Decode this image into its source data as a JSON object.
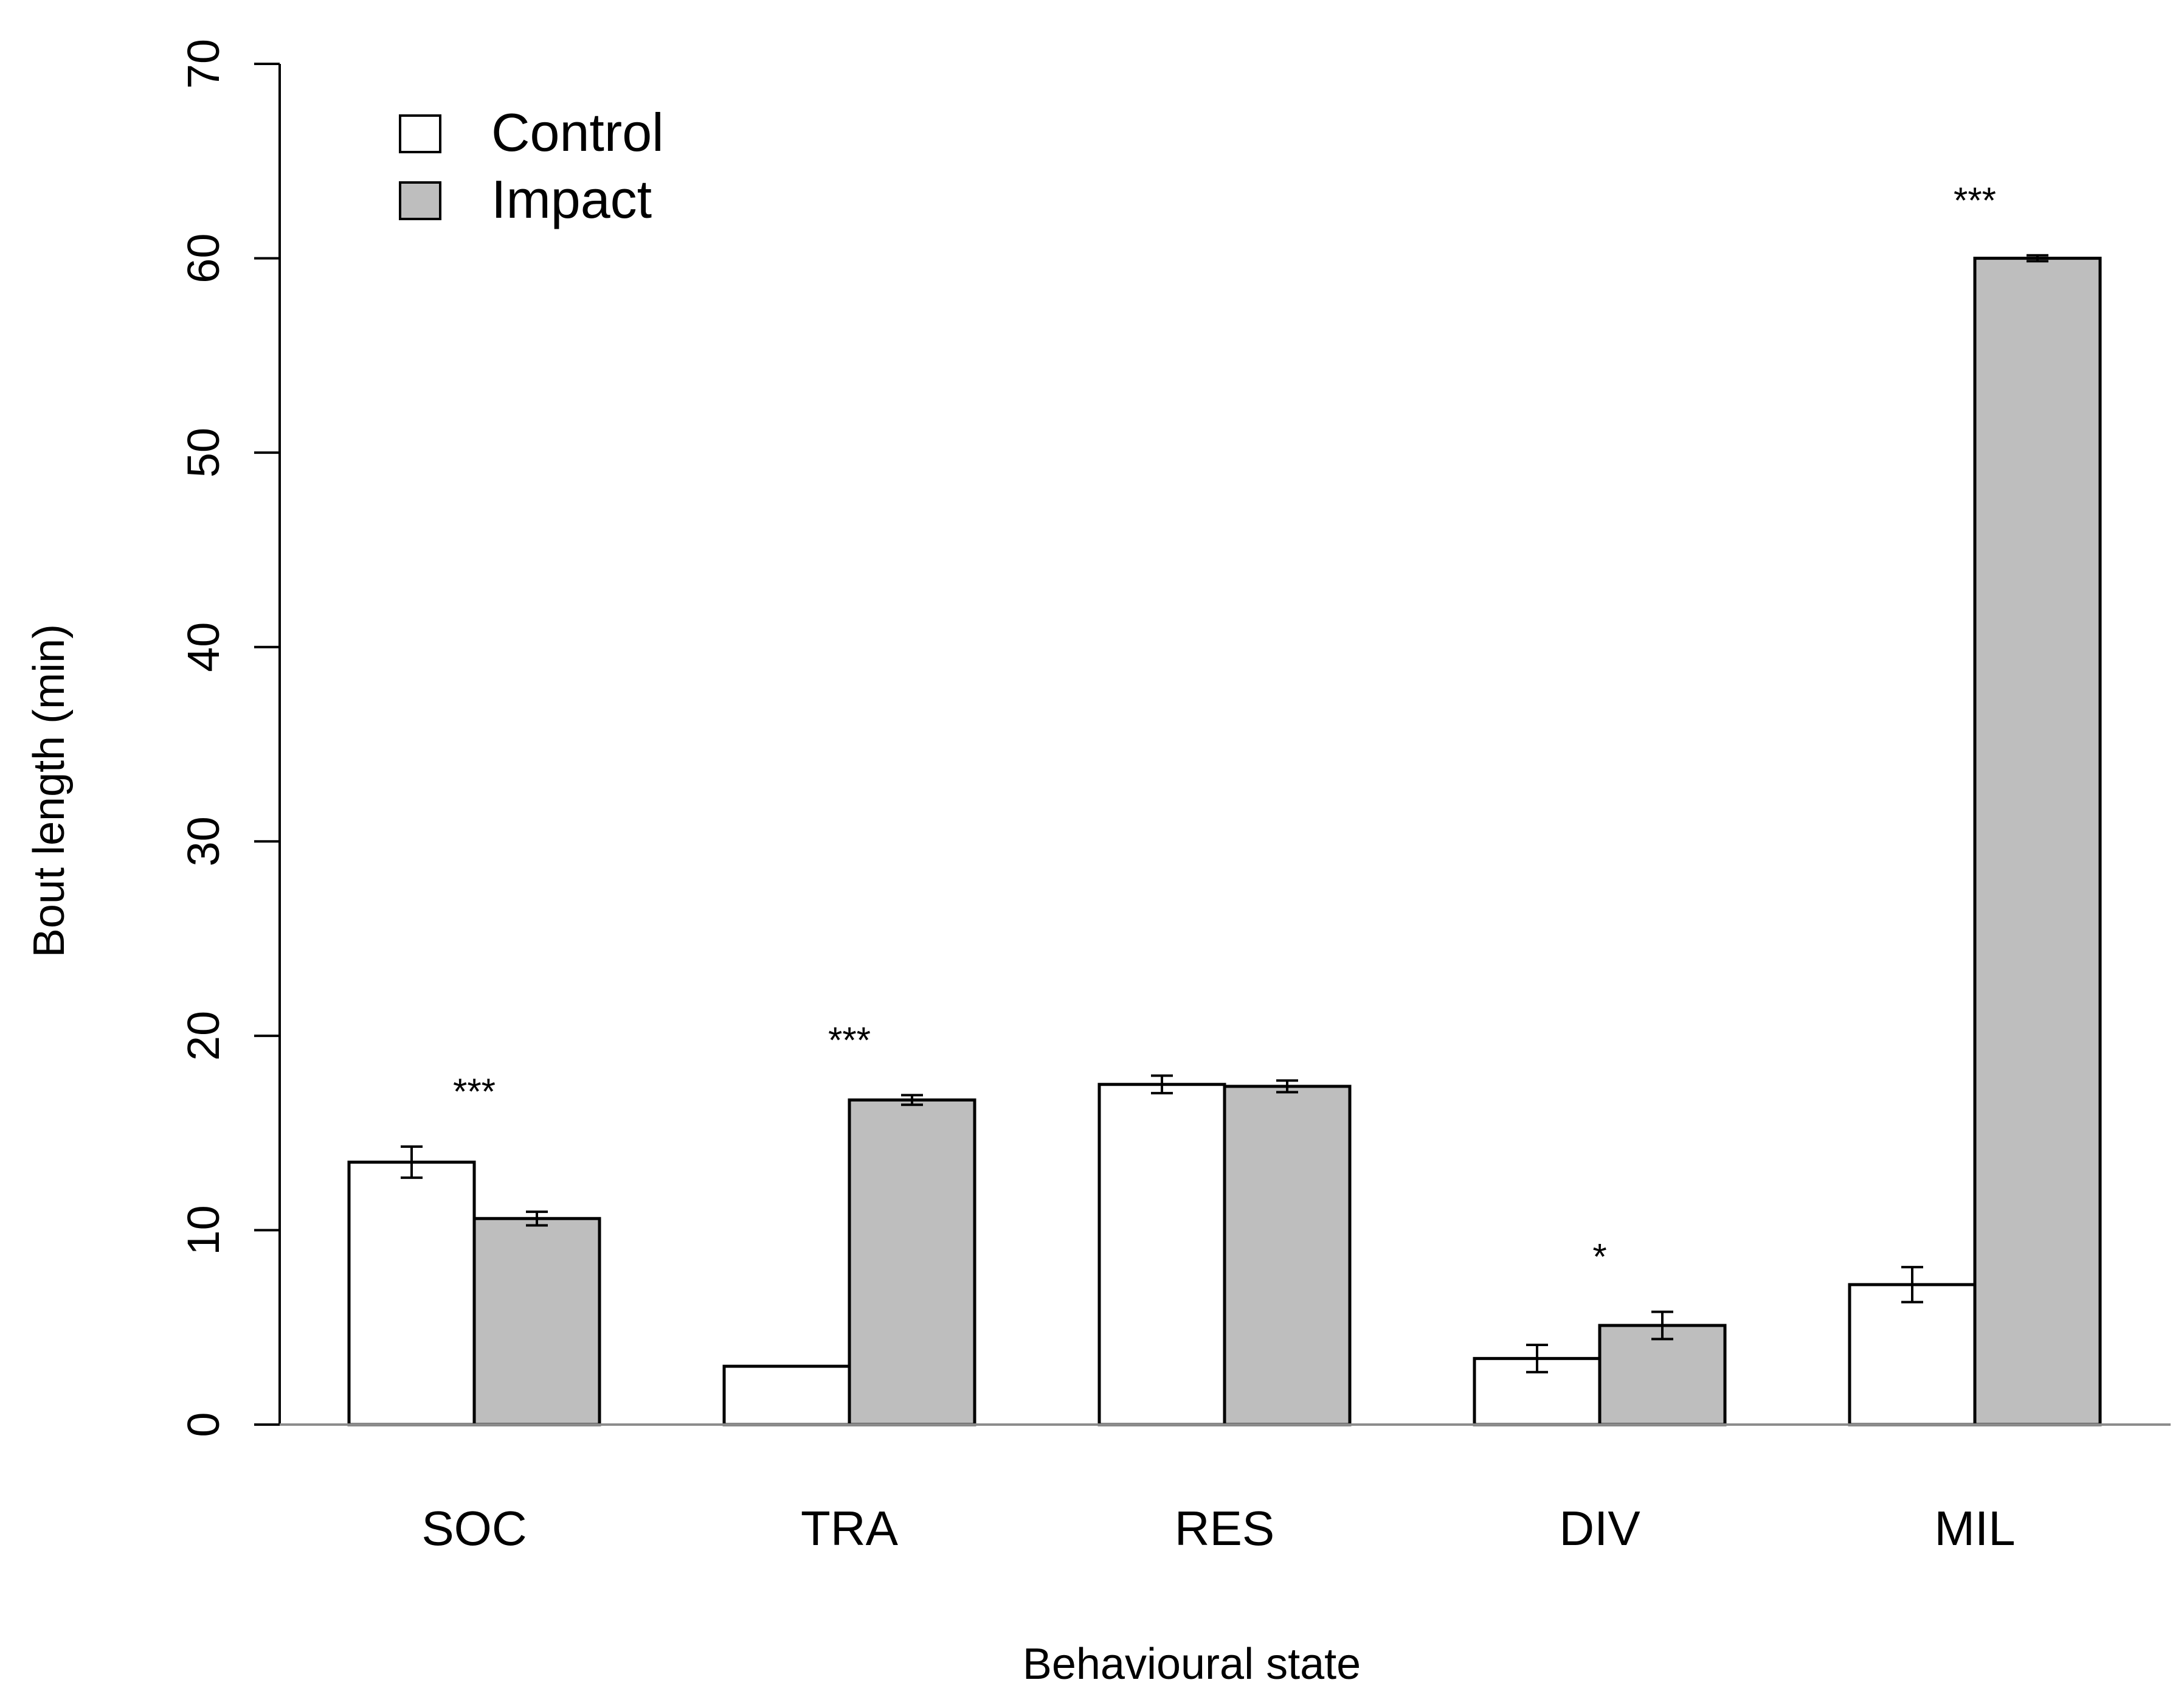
{
  "chart_data": {
    "type": "bar",
    "title": "",
    "xlabel": "Behavioural state",
    "ylabel": "Bout length (min)",
    "ylim": [
      0,
      70
    ],
    "yticks": [
      0,
      10,
      20,
      30,
      40,
      50,
      60,
      70
    ],
    "categories": [
      "SOC",
      "TRA",
      "RES",
      "DIV",
      "MIL"
    ],
    "series": [
      {
        "name": "Control",
        "color": "#ffffff",
        "values": [
          13.5,
          3.0,
          17.5,
          3.4,
          7.2
        ],
        "errors": [
          0.8,
          0.0,
          0.45,
          0.7,
          0.9
        ]
      },
      {
        "name": "Impact",
        "color": "#bebebe",
        "values": [
          10.6,
          16.7,
          17.4,
          5.1,
          60.0
        ],
        "errors": [
          0.35,
          0.25,
          0.3,
          0.7,
          0.15
        ]
      }
    ],
    "significance": [
      "***",
      "***",
      "",
      "*",
      "***"
    ],
    "legend": {
      "position": "top-left",
      "entries": [
        "Control",
        "Impact"
      ]
    },
    "grid": false
  }
}
